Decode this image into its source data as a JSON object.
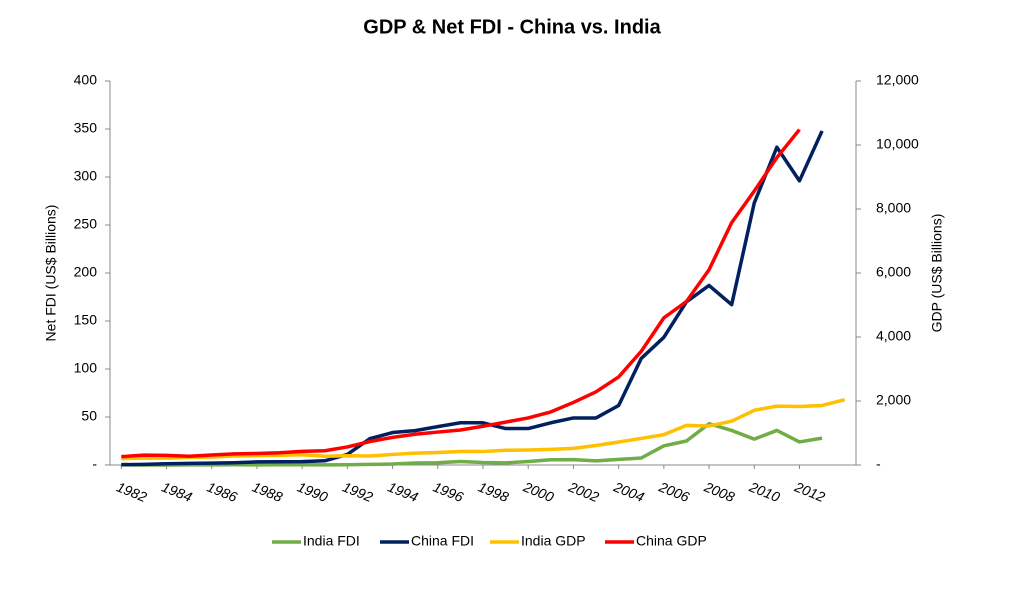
{
  "chart_data": {
    "type": "line",
    "title": "GDP & Net FDI - China vs. India",
    "y_label": "Net FDI (US$ Billions)",
    "y2_label": "GDP (US$ Billions)",
    "x": [
      1982,
      1983,
      1984,
      1985,
      1986,
      1987,
      1988,
      1989,
      1990,
      1991,
      1992,
      1993,
      1994,
      1995,
      1996,
      1997,
      1998,
      1999,
      2000,
      2001,
      2002,
      2003,
      2004,
      2005,
      2006,
      2007,
      2008,
      2009,
      2010,
      2011,
      2012,
      2013,
      2014
    ],
    "xticks": [
      1982,
      1984,
      1986,
      1988,
      1990,
      1992,
      1994,
      1996,
      1998,
      2000,
      2002,
      2004,
      2006,
      2008,
      2010,
      2012
    ],
    "xlim": [
      1981.5,
      2014.5
    ],
    "ylim": [
      0,
      400
    ],
    "yticks": [
      {
        "value": 0,
        "label": "-"
      },
      50,
      100,
      150,
      200,
      250,
      300,
      350,
      400
    ],
    "y2lim": [
      0,
      12000
    ],
    "y2ticks": [
      {
        "value": 0,
        "label": "-"
      },
      {
        "value": 2000,
        "label": "2,000"
      },
      {
        "value": 4000,
        "label": "4,000"
      },
      {
        "value": 6000,
        "label": "6,000"
      },
      {
        "value": 8000,
        "label": "8,000"
      },
      {
        "value": 10000,
        "label": "10,000"
      },
      {
        "value": 12000,
        "label": "12,000"
      }
    ],
    "grid": false,
    "legend": "bottom",
    "series": [
      {
        "name": "India FDI",
        "color": "#70ad47",
        "values": [
          0.1,
          0,
          0,
          0.1,
          0.1,
          0.2,
          0.1,
          0.3,
          0.2,
          0.1,
          0.3,
          0.6,
          1,
          2.1,
          2.4,
          3.6,
          2.6,
          2.2,
          3.6,
          5.5,
          5.6,
          4.3,
          5.8,
          7.3,
          20,
          25,
          43,
          36,
          27,
          36,
          24,
          28,
          null
        ]
      },
      {
        "name": "China FDI",
        "color": "#002060",
        "values": [
          0.4,
          0.6,
          1.3,
          1.7,
          1.9,
          2.3,
          3.2,
          3.4,
          3.5,
          4.4,
          11,
          27.5,
          33.8,
          35.8,
          40,
          44,
          44,
          38,
          38,
          44,
          49,
          49,
          62,
          111,
          133,
          170,
          187,
          167,
          273,
          331,
          296,
          348,
          null
        ]
      },
      {
        "name": "India GDP",
        "color": "#ffc000",
        "axis": "y2",
        "values": [
          200,
          220,
          215,
          235,
          250,
          280,
          290,
          300,
          320,
          275,
          290,
          280,
          330,
          370,
          390,
          420,
          420,
          460,
          470,
          490,
          520,
          610,
          720,
          830,
          950,
          1240,
          1220,
          1370,
          1710,
          1840,
          1830,
          1860,
          2040
        ]
      },
      {
        "name": "China GDP",
        "color": "#ff0000",
        "axis": "y2",
        "values": [
          260,
          309,
          301,
          273,
          312,
          348,
          361,
          383,
          427,
          445,
          564,
          734,
          863,
          962,
          1029,
          1094,
          1211,
          1339,
          1471,
          1660,
          1955,
          2286,
          2752,
          3552,
          4598,
          5110,
          6101,
          7573,
          8560,
          9607,
          10482,
          null,
          null
        ]
      }
    ]
  }
}
